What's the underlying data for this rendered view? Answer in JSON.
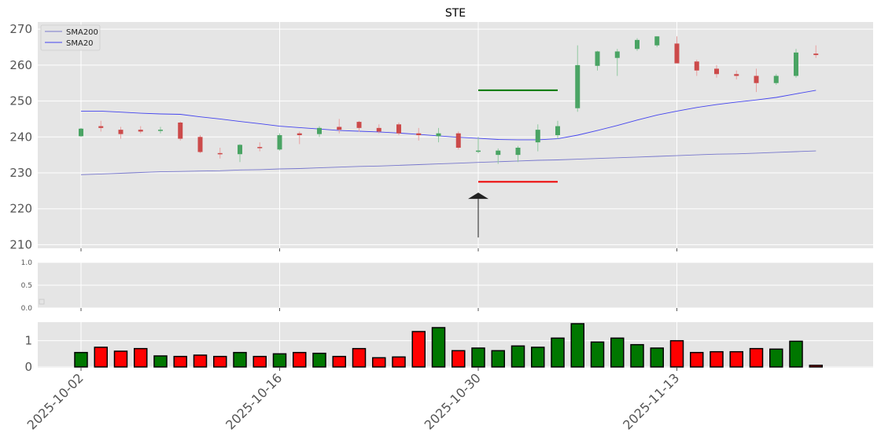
{
  "chart_data": {
    "type": "candlestick",
    "title": "STE",
    "dates": [
      "2025-10-02",
      "2025-10-03",
      "2025-10-06",
      "2025-10-07",
      "2025-10-08",
      "2025-10-09",
      "2025-10-10",
      "2025-10-13",
      "2025-10-14",
      "2025-10-15",
      "2025-10-16",
      "2025-10-17",
      "2025-10-20",
      "2025-10-21",
      "2025-10-22",
      "2025-10-23",
      "2025-10-24",
      "2025-10-27",
      "2025-10-28",
      "2025-10-29",
      "2025-10-30",
      "2025-10-31",
      "2025-11-03",
      "2025-11-04",
      "2025-11-05",
      "2025-11-06",
      "2025-11-07",
      "2025-11-10",
      "2025-11-11",
      "2025-11-12",
      "2025-11-13",
      "2025-11-14",
      "2025-11-17",
      "2025-11-18",
      "2025-11-19",
      "2025-11-20",
      "2025-11-21",
      "2025-11-24"
    ],
    "x_ticks": [
      "2025-10-02",
      "2025-10-16",
      "2025-10-30",
      "2025-11-13"
    ],
    "price_ylim": [
      209,
      272
    ],
    "price_yticks": [
      210,
      220,
      230,
      240,
      250,
      260,
      270
    ],
    "candles": [
      {
        "o": 240.2,
        "h": 242.5,
        "l": 240.0,
        "c": 242.3
      },
      {
        "o": 243.0,
        "h": 244.5,
        "l": 241.5,
        "c": 242.5
      },
      {
        "o": 242.0,
        "h": 242.8,
        "l": 239.5,
        "c": 240.8
      },
      {
        "o": 242.0,
        "h": 243.0,
        "l": 241.0,
        "c": 241.5
      },
      {
        "o": 241.8,
        "h": 242.8,
        "l": 241.0,
        "c": 242.0
      },
      {
        "o": 244.0,
        "h": 244.3,
        "l": 239.0,
        "c": 239.5
      },
      {
        "o": 240.0,
        "h": 240.5,
        "l": 235.5,
        "c": 235.8
      },
      {
        "o": 235.5,
        "h": 237.0,
        "l": 234.0,
        "c": 235.2
      },
      {
        "o": 235.2,
        "h": 238.0,
        "l": 233.0,
        "c": 237.8
      },
      {
        "o": 237.2,
        "h": 238.5,
        "l": 236.0,
        "c": 237.0
      },
      {
        "o": 236.5,
        "h": 241.0,
        "l": 236.2,
        "c": 240.5
      },
      {
        "o": 241.0,
        "h": 241.5,
        "l": 238.0,
        "c": 240.5
      },
      {
        "o": 240.8,
        "h": 243.0,
        "l": 240.0,
        "c": 242.5
      },
      {
        "o": 242.8,
        "h": 245.0,
        "l": 241.0,
        "c": 242.0
      },
      {
        "o": 244.2,
        "h": 244.5,
        "l": 241.5,
        "c": 242.5
      },
      {
        "o": 242.5,
        "h": 243.5,
        "l": 241.0,
        "c": 241.5
      },
      {
        "o": 243.5,
        "h": 244.0,
        "l": 240.5,
        "c": 241.0
      },
      {
        "o": 241.0,
        "h": 242.5,
        "l": 239.0,
        "c": 240.5
      },
      {
        "o": 240.2,
        "h": 242.5,
        "l": 238.5,
        "c": 241.0
      },
      {
        "o": 241.0,
        "h": 241.5,
        "l": 236.5,
        "c": 237.0
      },
      {
        "o": 236.0,
        "h": 240.0,
        "l": 235.5,
        "c": 236.2
      },
      {
        "o": 235.0,
        "h": 236.8,
        "l": 232.5,
        "c": 236.2
      },
      {
        "o": 235.0,
        "h": 237.5,
        "l": 233.0,
        "c": 237.0
      },
      {
        "o": 238.5,
        "h": 243.5,
        "l": 236.0,
        "c": 242.0
      },
      {
        "o": 240.5,
        "h": 244.5,
        "l": 239.5,
        "c": 243.0
      },
      {
        "o": 248.0,
        "h": 265.5,
        "l": 247.0,
        "c": 260.0
      },
      {
        "o": 259.8,
        "h": 264.0,
        "l": 258.5,
        "c": 263.8
      },
      {
        "o": 262.0,
        "h": 264.5,
        "l": 257.0,
        "c": 263.8
      },
      {
        "o": 264.5,
        "h": 267.5,
        "l": 264.0,
        "c": 267.0
      },
      {
        "o": 265.5,
        "h": 268.0,
        "l": 265.0,
        "c": 268.0
      },
      {
        "o": 266.0,
        "h": 268.0,
        "l": 260.5,
        "c": 260.5
      },
      {
        "o": 261.0,
        "h": 261.5,
        "l": 257.0,
        "c": 258.5
      },
      {
        "o": 259.0,
        "h": 260.0,
        "l": 256.5,
        "c": 257.5
      },
      {
        "o": 257.5,
        "h": 258.5,
        "l": 256.0,
        "c": 257.0
      },
      {
        "o": 257.0,
        "h": 259.0,
        "l": 252.5,
        "c": 255.0
      },
      {
        "o": 255.0,
        "h": 257.5,
        "l": 254.5,
        "c": 257.0
      },
      {
        "o": 257.0,
        "h": 264.5,
        "l": 256.5,
        "c": 263.5
      },
      {
        "o": 263.2,
        "h": 265.5,
        "l": 262.0,
        "c": 262.8
      }
    ],
    "series": [
      {
        "name": "SMA200",
        "color": "#7777cc",
        "values": [
          229.5,
          229.7,
          229.9,
          230.1,
          230.3,
          230.4,
          230.5,
          230.6,
          230.8,
          230.9,
          231.1,
          231.2,
          231.4,
          231.6,
          231.8,
          231.9,
          232.1,
          232.3,
          232.5,
          232.7,
          232.9,
          233.1,
          233.3,
          233.5,
          233.6,
          233.8,
          234.0,
          234.2,
          234.4,
          234.6,
          234.8,
          235.0,
          235.2,
          235.3,
          235.5,
          235.7,
          235.9,
          236.1
        ]
      },
      {
        "name": "SMA20",
        "color": "#4444ee",
        "values": [
          247.2,
          247.2,
          246.9,
          246.6,
          246.4,
          246.3,
          245.6,
          245.0,
          244.3,
          243.7,
          243.0,
          242.6,
          242.2,
          241.8,
          241.6,
          241.4,
          241.1,
          240.7,
          240.3,
          239.9,
          239.6,
          239.3,
          239.2,
          239.2,
          239.5,
          240.5,
          241.8,
          243.2,
          244.7,
          246.1,
          247.2,
          248.2,
          249.0,
          249.7,
          250.3,
          251.0,
          252.0,
          253.0
        ]
      }
    ],
    "annotations": {
      "green_line": {
        "y": 253.0,
        "x_from": "2025-10-30",
        "x_to": "2025-11-05",
        "color": "#007700"
      },
      "red_line": {
        "y": 227.5,
        "x_from": "2025-10-30",
        "x_to": "2025-11-05",
        "color": "#ee0000"
      },
      "arrow": {
        "x": "2025-10-30",
        "y_tail": 212.0,
        "y_head": 224.5,
        "color": "#222222"
      }
    },
    "panel2": {
      "ylim": [
        0.0,
        1.0
      ],
      "yticks": [
        0.0,
        0.5,
        1.0
      ],
      "ytick_labels": [
        "0.0",
        "0.5",
        "1.0"
      ]
    },
    "volume": {
      "ylim": [
        0,
        1.65
      ],
      "yticks": [
        0,
        1
      ],
      "values": [
        0.55,
        0.75,
        0.6,
        0.7,
        0.42,
        0.4,
        0.45,
        0.4,
        0.55,
        0.4,
        0.5,
        0.55,
        0.52,
        0.4,
        0.7,
        0.35,
        0.38,
        1.35,
        1.5,
        0.62,
        0.72,
        0.62,
        0.8,
        0.75,
        1.1,
        1.65,
        0.95,
        1.1,
        0.85,
        0.72,
        1.0,
        0.55,
        0.58,
        0.58,
        0.7,
        0.68,
        0.98,
        0.06
      ],
      "colors": [
        "g",
        "r",
        "r",
        "r",
        "g",
        "r",
        "r",
        "r",
        "g",
        "r",
        "g",
        "r",
        "g",
        "r",
        "r",
        "r",
        "r",
        "r",
        "g",
        "r",
        "g",
        "g",
        "g",
        "g",
        "g",
        "g",
        "g",
        "g",
        "g",
        "g",
        "r",
        "r",
        "r",
        "r",
        "r",
        "g",
        "g",
        "r"
      ]
    },
    "legend": {
      "placement": "top-left",
      "entries": [
        "SMA200",
        "SMA20"
      ]
    },
    "grid": true
  }
}
